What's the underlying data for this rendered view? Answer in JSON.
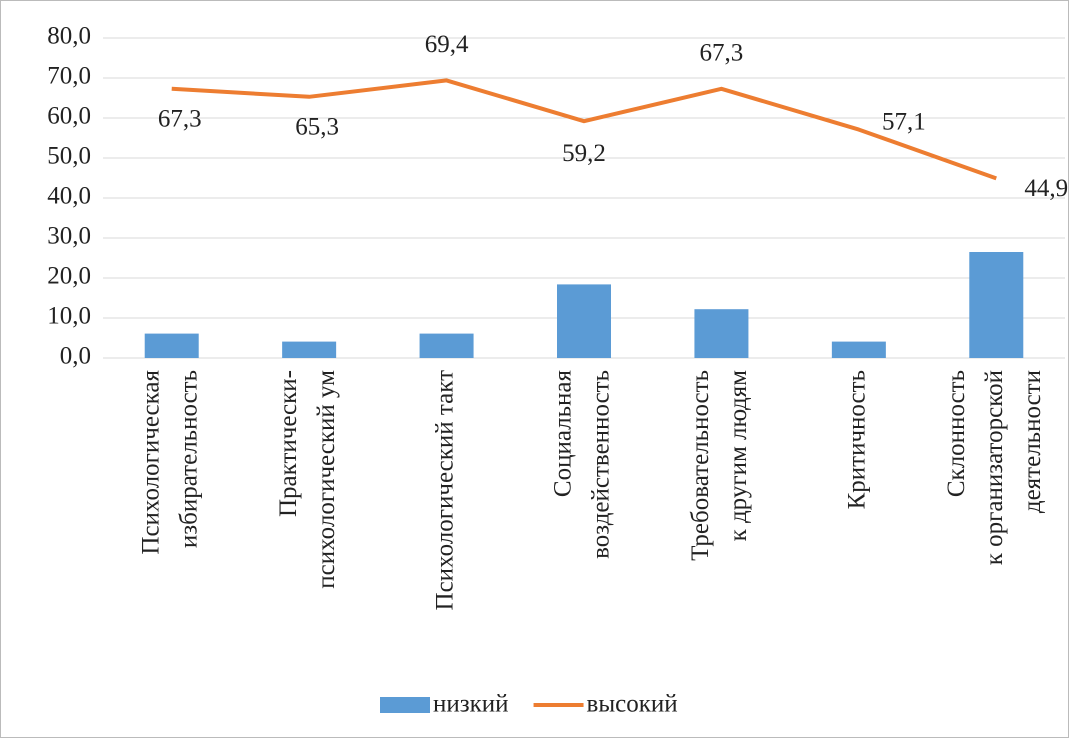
{
  "chart_data": {
    "type": "bar_line",
    "categories": [
      [
        "Психологическая",
        "избирательность"
      ],
      [
        "Практически-",
        "психологический ум"
      ],
      [
        "Психологический такт"
      ],
      [
        "Социальная",
        "воздейственность"
      ],
      [
        "Требовательность",
        "к другим людям"
      ],
      [
        "Критичность"
      ],
      [
        "Склонность",
        "к организаторской",
        "деятельности"
      ]
    ],
    "series": [
      {
        "name": "низкий",
        "type": "bar",
        "color": "#5b9bd5",
        "values": [
          6.1,
          4.1,
          6.1,
          18.4,
          12.2,
          4.1,
          26.5
        ]
      },
      {
        "name": "высокий",
        "type": "line",
        "color": "#ed7d31",
        "values": [
          67.3,
          65.3,
          69.4,
          59.2,
          67.3,
          57.1,
          44.9
        ],
        "value_labels": [
          "67,3",
          "65,3",
          "69,4",
          "59,2",
          "67,3",
          "57,1",
          "44,9"
        ]
      }
    ],
    "ylim": [
      0,
      80
    ],
    "yticks": [
      {
        "value": 0,
        "label": "0,0"
      },
      {
        "value": 10,
        "label": "10,0"
      },
      {
        "value": 20,
        "label": "20,0"
      },
      {
        "value": 30,
        "label": "30,0"
      },
      {
        "value": 40,
        "label": "40,0"
      },
      {
        "value": 50,
        "label": "50,0"
      },
      {
        "value": 60,
        "label": "60,0"
      },
      {
        "value": 70,
        "label": "70,0"
      },
      {
        "value": 80,
        "label": "80,0"
      }
    ],
    "grid": true,
    "legend": "bottom"
  }
}
